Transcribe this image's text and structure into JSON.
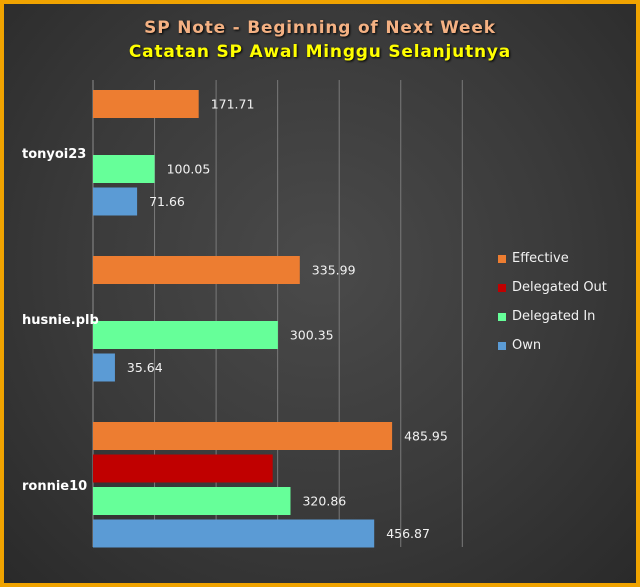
{
  "header": {
    "title": "SP Note - Beginning of Next Week",
    "subtitle": "Catatan SP Awal Minggu Selanjutnya"
  },
  "chart_data": {
    "type": "bar",
    "orientation": "horizontal",
    "categories": [
      "tonyoi23",
      "husnie.plb",
      "ronnie10"
    ],
    "series": [
      {
        "name": "Effective",
        "color": "#ed7d31",
        "values": [
          171.71,
          335.99,
          485.95
        ]
      },
      {
        "name": "Delegated Out",
        "color": "#c00000",
        "values": [
          null,
          null,
          291.94
        ]
      },
      {
        "name": "Delegated In",
        "color": "#66ff99",
        "values": [
          100.05,
          300.35,
          320.86
        ]
      },
      {
        "name": "Own",
        "color": "#5b9bd5",
        "values": [
          71.66,
          35.64,
          456.87
        ]
      }
    ],
    "data_labels": [
      [
        "171.71",
        "",
        "100.05",
        "71.66"
      ],
      [
        "335.99",
        "",
        "300.35",
        "35.64"
      ],
      [
        "485.95",
        "",
        "320.86",
        "456.87"
      ]
    ],
    "xlim": [
      0,
      600
    ],
    "grid": true,
    "legend_position": "right"
  }
}
